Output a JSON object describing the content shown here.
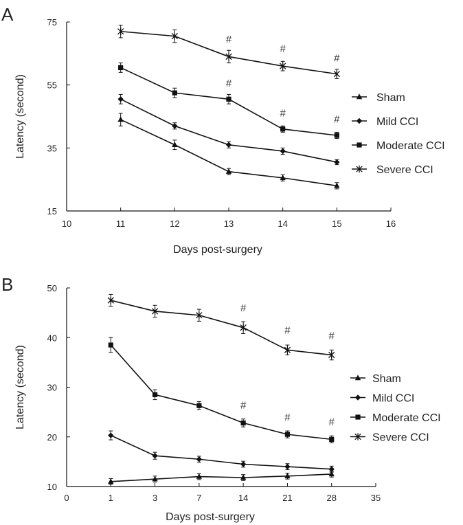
{
  "chart_data": [
    {
      "panel_label": "A",
      "type": "line",
      "xlabel": "Days post-surgery",
      "ylabel": "Latency (second)",
      "xlim": [
        10,
        16
      ],
      "ylim": [
        15,
        75
      ],
      "x_ticks": [
        10,
        11,
        12,
        13,
        14,
        15,
        16
      ],
      "y_ticks": [
        15,
        35,
        55,
        75
      ],
      "x_tick_labels": [
        "10",
        "11",
        "12",
        "13",
        "14",
        "15",
        "16"
      ],
      "y_tick_labels": [
        "15",
        "35",
        "55",
        "75"
      ],
      "x": [
        11,
        12,
        13,
        14,
        15
      ],
      "legend_position": "right",
      "series": [
        {
          "name": "Sham",
          "marker": "triangle",
          "values": [
            44,
            36,
            27.5,
            25.5,
            23
          ],
          "errors": [
            2,
            1.5,
            1,
            1,
            1
          ]
        },
        {
          "name": "Mild CCI",
          "marker": "diamond",
          "values": [
            50.5,
            42,
            36,
            34,
            30.5
          ],
          "errors": [
            1.5,
            1,
            1,
            1,
            0.8
          ]
        },
        {
          "name": "Moderate CCI",
          "marker": "square",
          "values": [
            60.5,
            52.5,
            50.5,
            41,
            39
          ],
          "errors": [
            1.5,
            1.5,
            1.5,
            1,
            1
          ]
        },
        {
          "name": "Severe CCI",
          "marker": "x",
          "values": [
            72,
            70.5,
            64,
            61,
            58.5
          ],
          "errors": [
            2,
            2,
            2,
            1.5,
            1.5
          ]
        }
      ],
      "annotations": [
        {
          "text": "#",
          "x": 13,
          "y": 68.5
        },
        {
          "text": "#",
          "x": 14,
          "y": 65.5
        },
        {
          "text": "#",
          "x": 15,
          "y": 62.5
        },
        {
          "text": "#",
          "x": 13,
          "y": 54.5
        },
        {
          "text": "#",
          "x": 14,
          "y": 45
        },
        {
          "text": "#",
          "x": 15,
          "y": 43
        }
      ]
    },
    {
      "panel_label": "B",
      "type": "line",
      "xlabel": "Days post-surgery",
      "ylabel": "Latency (second)",
      "xlim": [
        0,
        35
      ],
      "ylim": [
        10,
        50
      ],
      "x_ticks": [
        0,
        1,
        3,
        7,
        14,
        21,
        28,
        35
      ],
      "x_tick_labels": [
        "0",
        "1",
        "3",
        "7",
        "14",
        "21",
        "28",
        "35"
      ],
      "y_ticks": [
        10,
        20,
        30,
        40,
        50
      ],
      "y_tick_labels": [
        "10",
        "20",
        "30",
        "40",
        "50"
      ],
      "x": [
        1,
        3,
        7,
        14,
        21,
        28
      ],
      "legend_position": "right",
      "series": [
        {
          "name": "Sham",
          "marker": "triangle",
          "values": [
            11,
            11.5,
            12,
            11.8,
            12.1,
            12.5
          ],
          "errors": [
            0.6,
            0.6,
            0.6,
            0.6,
            0.6,
            0.6
          ]
        },
        {
          "name": "Mild CCI",
          "marker": "diamond",
          "values": [
            20.3,
            16.2,
            15.5,
            14.5,
            14,
            13.5
          ],
          "errors": [
            0.9,
            0.7,
            0.6,
            0.6,
            0.6,
            0.6
          ]
        },
        {
          "name": "Moderate CCI",
          "marker": "square",
          "values": [
            38.5,
            28.5,
            26.3,
            22.8,
            20.5,
            19.5
          ],
          "errors": [
            1.5,
            1,
            0.8,
            0.8,
            0.7,
            0.7
          ]
        },
        {
          "name": "Severe CCI",
          "marker": "x",
          "values": [
            47.5,
            45.3,
            44.5,
            42,
            37.5,
            36.5
          ],
          "errors": [
            1.2,
            1.2,
            1.2,
            1.2,
            1,
            1
          ]
        }
      ],
      "annotations": [
        {
          "text": "#",
          "x": 14,
          "y": 45.3
        },
        {
          "text": "#",
          "x": 21,
          "y": 40.8
        },
        {
          "text": "#",
          "x": 28,
          "y": 39.7
        },
        {
          "text": "#",
          "x": 14,
          "y": 25.7
        },
        {
          "text": "#",
          "x": 21,
          "y": 23.3
        },
        {
          "text": "#",
          "x": 28,
          "y": 22.3
        }
      ]
    }
  ]
}
